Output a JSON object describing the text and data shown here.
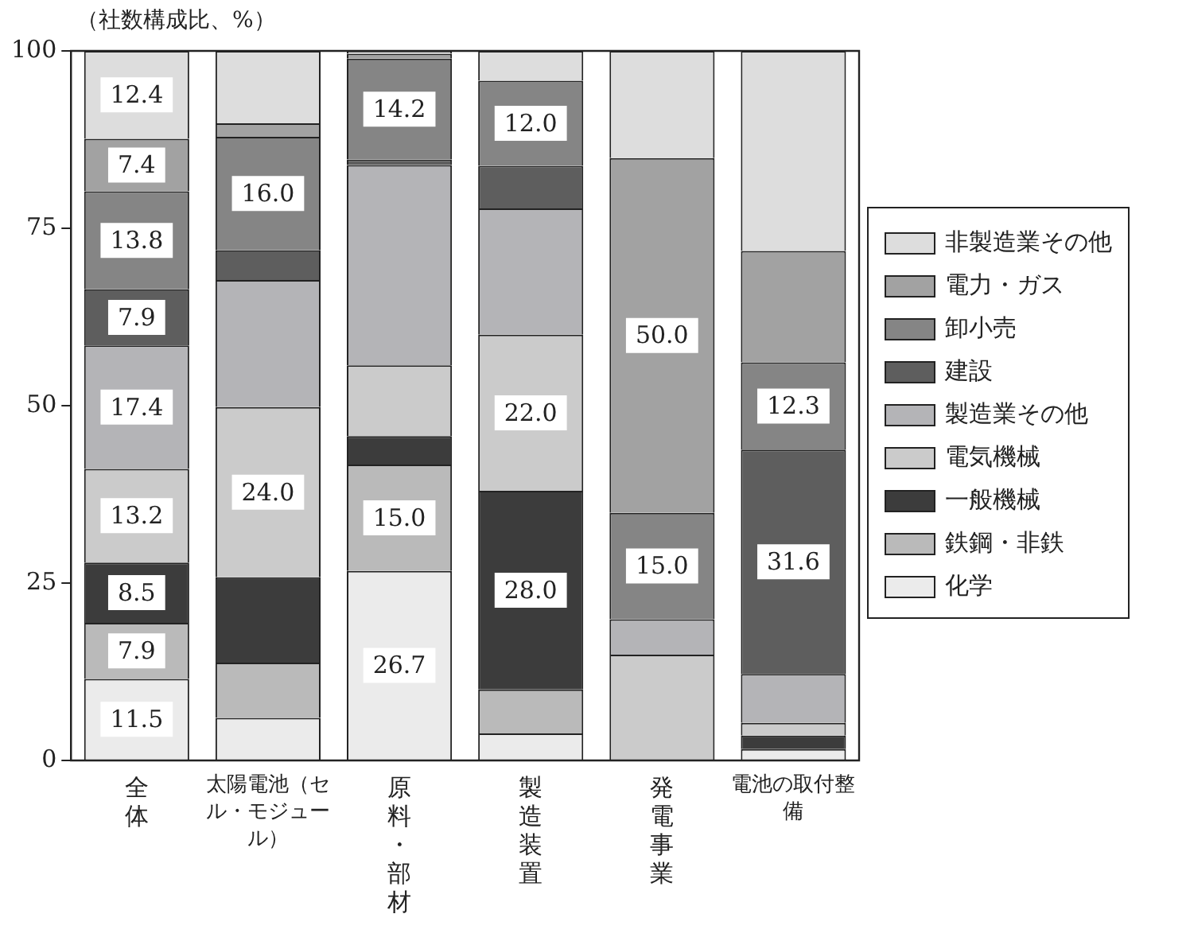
{
  "chart_data": {
    "type": "bar",
    "stacked": true,
    "ylabel": "（社数構成比、%）",
    "categories": [
      "全体",
      "太陽電池（セル・モジュール）",
      "原料・部材",
      "製造装置",
      "発電事業",
      "電池の取付整備"
    ],
    "ylim": [
      0,
      100
    ],
    "yticks": [
      0,
      25,
      50,
      75,
      100
    ],
    "legend": "right",
    "series": [
      {
        "name": "化学",
        "color": "#ebebeb",
        "values": [
          11.5,
          6.0,
          26.7,
          3.8,
          0,
          1.6
        ],
        "value_labels": [
          "11.5",
          null,
          "26.7",
          null,
          null,
          null
        ]
      },
      {
        "name": "鉄鋼・非鉄",
        "color": "#bababa",
        "values": [
          7.9,
          7.8,
          15.0,
          6.2,
          0,
          0
        ],
        "value_labels": [
          "7.9",
          null,
          "15.0",
          null,
          null,
          null
        ]
      },
      {
        "name": "一般機械",
        "color": "#3c3c3c",
        "values": [
          8.5,
          12.0,
          4.0,
          28.0,
          0,
          1.9
        ],
        "value_labels": [
          "8.5",
          null,
          null,
          "28.0",
          null,
          null
        ]
      },
      {
        "name": "電気機械",
        "color": "#cbcbcb",
        "values": [
          13.2,
          24.0,
          10.0,
          22.0,
          14.9,
          1.8
        ],
        "value_labels": [
          "13.2",
          "24.0",
          null,
          "22.0",
          null,
          null
        ]
      },
      {
        "name": "製造業その他",
        "color": "#b4b4b7",
        "values": [
          17.4,
          17.9,
          28.2,
          17.8,
          5.0,
          6.9
        ],
        "value_labels": [
          "17.4",
          null,
          null,
          null,
          null,
          null
        ]
      },
      {
        "name": "建設",
        "color": "#5e5e5e",
        "values": [
          7.9,
          4.2,
          0.8,
          6.0,
          0,
          31.6
        ],
        "value_labels": [
          "7.9",
          null,
          null,
          null,
          null,
          "31.6"
        ]
      },
      {
        "name": "卸小売",
        "color": "#858585",
        "values": [
          13.8,
          16.0,
          14.2,
          12.0,
          15.0,
          12.3
        ],
        "value_labels": [
          "13.8",
          "16.0",
          "14.2",
          "12.0",
          "15.0",
          "12.3"
        ]
      },
      {
        "name": "電力・ガス",
        "color": "#a2a2a2",
        "values": [
          7.4,
          1.9,
          0.7,
          0,
          50.0,
          15.7
        ],
        "value_labels": [
          "7.4",
          null,
          null,
          null,
          "50.0",
          null
        ]
      },
      {
        "name": "非製造業その他",
        "color": "#dddddd",
        "values": [
          12.4,
          10.2,
          0.4,
          4.2,
          15.1,
          28.2
        ],
        "value_labels": [
          "12.4",
          null,
          null,
          null,
          null,
          null
        ]
      }
    ]
  }
}
